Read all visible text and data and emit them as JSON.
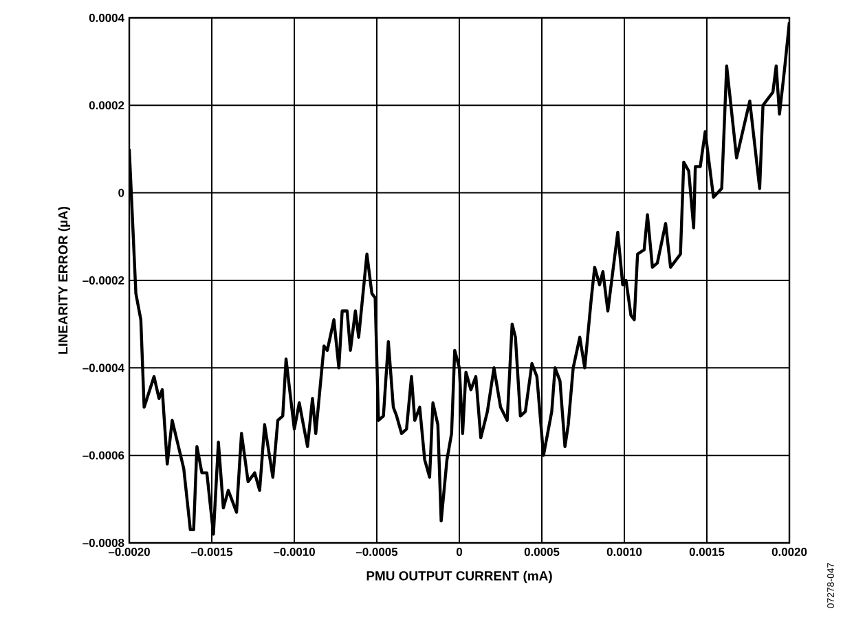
{
  "chart_data": {
    "type": "line",
    "xlabel": "PMU OUTPUT CURRENT (mA)",
    "ylabel": "LINEARITY ERROR (µA)",
    "annotations": [
      "07278-047"
    ],
    "grid": true,
    "marker": "none",
    "line_style": "solid",
    "xlim": [
      -0.002,
      0.002
    ],
    "ylim": [
      -0.0008,
      0.0004
    ],
    "xticks": [
      {
        "value": -0.002,
        "label": "–0.0020"
      },
      {
        "value": -0.0015,
        "label": "–0.0015"
      },
      {
        "value": -0.001,
        "label": "–0.0010"
      },
      {
        "value": -0.0005,
        "label": "–0.0005"
      },
      0,
      0.0005,
      {
        "value": 0.001,
        "label": "0.0010"
      },
      0.0015,
      {
        "value": 0.002,
        "label": "0.0020"
      }
    ],
    "yticks": [
      {
        "value": -0.0008,
        "label": "–0.0008"
      },
      {
        "value": -0.0006,
        "label": "–0.0006"
      },
      {
        "value": -0.0004,
        "label": "–0.0004"
      },
      {
        "value": -0.0002,
        "label": "–0.0002"
      },
      0,
      0.0002,
      0.0004
    ],
    "series": [
      {
        "color": "#000000",
        "x": [
          -0.002,
          -0.00196,
          -0.00193,
          -0.00191,
          -0.00185,
          -0.00182,
          -0.0018,
          -0.00177,
          -0.00174,
          -0.00167,
          -0.00163,
          -0.00161,
          -0.00159,
          -0.00156,
          -0.00153,
          -0.00149,
          -0.00146,
          -0.00143,
          -0.0014,
          -0.00135,
          -0.00132,
          -0.00128,
          -0.00124,
          -0.00121,
          -0.00118,
          -0.00113,
          -0.0011,
          -0.00107,
          -0.00105,
          -0.001,
          -0.00097,
          -0.00092,
          -0.00089,
          -0.00087,
          -0.00082,
          -0.0008,
          -0.00076,
          -0.00073,
          -0.00071,
          -0.00068,
          -0.00066,
          -0.00063,
          -0.00061,
          -0.00056,
          -0.00053,
          -0.00051,
          -0.00049,
          -0.00046,
          -0.00043,
          -0.0004,
          -0.00038,
          -0.00035,
          -0.00032,
          -0.00029,
          -0.00027,
          -0.00024,
          -0.00021,
          -0.00018,
          -0.00016,
          -0.00013,
          -0.00011,
          -7.5e-05,
          -4.7e-05,
          -2.8e-05,
          0,
          2e-05,
          4e-05,
          7e-05,
          0.0001,
          0.00013,
          0.00017,
          0.00021,
          0.00025,
          0.00029,
          0.00032,
          0.00034,
          0.00037,
          0.0004,
          0.00044,
          0.00047,
          0.00051,
          0.00056,
          0.00058,
          0.00061,
          0.00064,
          0.00066,
          0.00069,
          0.00073,
          0.00076,
          0.0008,
          0.00082,
          0.00085,
          0.00087,
          0.0009,
          0.00096,
          0.00099,
          0.00101,
          0.00104,
          0.00106,
          0.00108,
          0.00112,
          0.00114,
          0.00117,
          0.0012,
          0.00125,
          0.00128,
          0.00134,
          0.00136,
          0.00139,
          0.00142,
          0.00143,
          0.00146,
          0.00149,
          0.00154,
          0.00159,
          0.00162,
          0.00168,
          0.00176,
          0.00182,
          0.00184,
          0.0019,
          0.00192,
          0.00194,
          0.00197,
          0.002
        ],
        "values": [
          0.0001,
          -0.00023,
          -0.00029,
          -0.00049,
          -0.00042,
          -0.00047,
          -0.00045,
          -0.00062,
          -0.00052,
          -0.00063,
          -0.00077,
          -0.00077,
          -0.00058,
          -0.00064,
          -0.00064,
          -0.00078,
          -0.00057,
          -0.00072,
          -0.00068,
          -0.00073,
          -0.00055,
          -0.00066,
          -0.00064,
          -0.00068,
          -0.00053,
          -0.00065,
          -0.00052,
          -0.00051,
          -0.00038,
          -0.00054,
          -0.00048,
          -0.00058,
          -0.00047,
          -0.00055,
          -0.00035,
          -0.00036,
          -0.00029,
          -0.0004,
          -0.00027,
          -0.00027,
          -0.00036,
          -0.00027,
          -0.00033,
          -0.00014,
          -0.00023,
          -0.00024,
          -0.00052,
          -0.00051,
          -0.00034,
          -0.00049,
          -0.00051,
          -0.00055,
          -0.00054,
          -0.00042,
          -0.00052,
          -0.00049,
          -0.00061,
          -0.00065,
          -0.00048,
          -0.00053,
          -0.00075,
          -0.00061,
          -0.00055,
          -0.00036,
          -0.0004,
          -0.00055,
          -0.00041,
          -0.00045,
          -0.00042,
          -0.00056,
          -0.0005,
          -0.0004,
          -0.00049,
          -0.00052,
          -0.0003,
          -0.00033,
          -0.00051,
          -0.0005,
          -0.00039,
          -0.00042,
          -0.0006,
          -0.0005,
          -0.0004,
          -0.00043,
          -0.00058,
          -0.00053,
          -0.0004,
          -0.00033,
          -0.0004,
          -0.00024,
          -0.00017,
          -0.00021,
          -0.00018,
          -0.00027,
          -9e-05,
          -0.00021,
          -0.0002,
          -0.00028,
          -0.00029,
          -0.00014,
          -0.00013,
          -5e-05,
          -0.00017,
          -0.00016,
          -7e-05,
          -0.00017,
          -0.00014,
          7e-05,
          5e-05,
          -8e-05,
          6e-05,
          6e-05,
          0.00014,
          -1e-05,
          1e-05,
          0.00029,
          8e-05,
          0.00021,
          1e-05,
          0.0002,
          0.00023,
          0.00029,
          0.00018,
          0.00028,
          0.00039
        ]
      }
    ]
  }
}
